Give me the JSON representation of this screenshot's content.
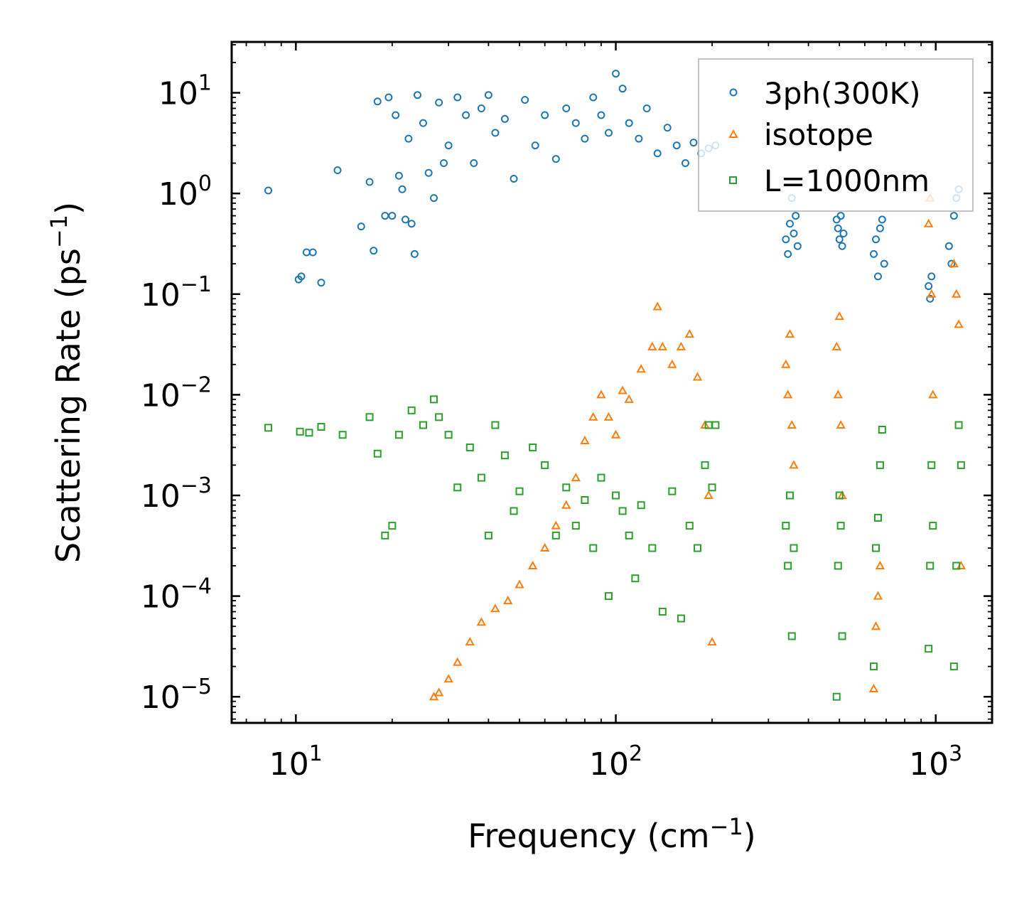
{
  "chart_data": {
    "type": "scatter",
    "title": "",
    "xlabel_main": "Frequency (cm",
    "xlabel_sup": "−1",
    "xlabel_close": ")",
    "ylabel_main": "Scattering Rate (ps",
    "ylabel_sup": "−1",
    "ylabel_close": ")",
    "xscale": "log",
    "yscale": "log",
    "xlim": [
      6.3,
      1500
    ],
    "ylim": [
      5.5e-06,
      32
    ],
    "x_ticks": [
      {
        "value": 10,
        "base": "10",
        "exp": "1"
      },
      {
        "value": 100,
        "base": "10",
        "exp": "2"
      },
      {
        "value": 1000,
        "base": "10",
        "exp": "3"
      }
    ],
    "y_ticks": [
      {
        "value": 10,
        "base": "10",
        "exp": "1"
      },
      {
        "value": 1,
        "base": "10",
        "exp": "0"
      },
      {
        "value": 0.1,
        "base": "10",
        "exp": "−1"
      },
      {
        "value": 0.01,
        "base": "10",
        "exp": "−2"
      },
      {
        "value": 0.001,
        "base": "10",
        "exp": "−3"
      },
      {
        "value": 0.0001,
        "base": "10",
        "exp": "−4"
      },
      {
        "value": 1e-05,
        "base": "10",
        "exp": "−5"
      }
    ],
    "legend_position": "top-right",
    "grid": false,
    "series": [
      {
        "name": "3ph(300K)",
        "marker": "circle",
        "color": "#1f77b4",
        "points": [
          [
            8.2,
            1.07
          ],
          [
            10.2,
            0.14
          ],
          [
            10.4,
            0.15
          ],
          [
            10.8,
            0.26
          ],
          [
            11.3,
            0.26
          ],
          [
            12,
            0.13
          ],
          [
            13.5,
            1.7
          ],
          [
            16,
            0.47
          ],
          [
            17,
            1.3
          ],
          [
            17.5,
            0.27
          ],
          [
            18,
            8.2
          ],
          [
            19,
            0.6
          ],
          [
            19.5,
            9
          ],
          [
            20,
            0.6
          ],
          [
            20.5,
            6
          ],
          [
            21,
            1.5
          ],
          [
            21.5,
            1.1
          ],
          [
            22,
            0.55
          ],
          [
            22.5,
            3.5
          ],
          [
            23,
            0.5
          ],
          [
            23.5,
            0.25
          ],
          [
            24,
            9.5
          ],
          [
            25,
            5
          ],
          [
            26,
            1.6
          ],
          [
            27,
            0.9
          ],
          [
            28,
            8
          ],
          [
            29,
            2
          ],
          [
            30,
            3
          ],
          [
            32,
            9
          ],
          [
            34,
            6
          ],
          [
            36,
            2
          ],
          [
            38,
            7
          ],
          [
            40,
            9.5
          ],
          [
            42,
            4
          ],
          [
            45,
            5.5
          ],
          [
            48,
            1.4
          ],
          [
            52,
            8.5
          ],
          [
            56,
            3
          ],
          [
            60,
            6
          ],
          [
            65,
            2.2
          ],
          [
            70,
            7
          ],
          [
            75,
            5
          ],
          [
            80,
            3.5
          ],
          [
            85,
            9
          ],
          [
            90,
            6
          ],
          [
            95,
            4
          ],
          [
            100,
            15.5
          ],
          [
            105,
            11
          ],
          [
            110,
            5
          ],
          [
            118,
            3.5
          ],
          [
            125,
            7
          ],
          [
            135,
            2.5
          ],
          [
            145,
            4.5
          ],
          [
            155,
            3
          ],
          [
            165,
            2
          ],
          [
            175,
            3.2
          ],
          [
            185,
            2.5
          ],
          [
            195,
            2.8
          ],
          [
            205,
            3
          ],
          [
            340,
            0.35
          ],
          [
            345,
            0.25
          ],
          [
            350,
            0.5
          ],
          [
            355,
            0.9
          ],
          [
            360,
            0.4
          ],
          [
            365,
            0.6
          ],
          [
            370,
            0.3
          ],
          [
            490,
            0.55
          ],
          [
            495,
            0.45
          ],
          [
            500,
            0.35
          ],
          [
            505,
            0.6
          ],
          [
            510,
            0.3
          ],
          [
            515,
            0.4
          ],
          [
            640,
            0.25
          ],
          [
            650,
            0.35
          ],
          [
            660,
            0.15
          ],
          [
            670,
            0.45
          ],
          [
            680,
            0.55
          ],
          [
            690,
            0.2
          ],
          [
            950,
            0.12
          ],
          [
            960,
            0.09
          ],
          [
            970,
            0.15
          ],
          [
            1100,
            0.3
          ],
          [
            1120,
            0.2
          ],
          [
            1140,
            0.6
          ],
          [
            1160,
            0.9
          ],
          [
            1180,
            1.1
          ]
        ]
      },
      {
        "name": "isotope",
        "marker": "triangle",
        "color": "#ff7f0e",
        "points": [
          [
            27,
            1e-05
          ],
          [
            28,
            1.1e-05
          ],
          [
            30,
            1.5e-05
          ],
          [
            32,
            2.2e-05
          ],
          [
            35,
            3.5e-05
          ],
          [
            38,
            5.5e-05
          ],
          [
            42,
            7.5e-05
          ],
          [
            46,
            9e-05
          ],
          [
            50,
            0.00013
          ],
          [
            55,
            0.0002
          ],
          [
            60,
            0.0003
          ],
          [
            65,
            0.0005
          ],
          [
            70,
            0.0008
          ],
          [
            75,
            0.0015
          ],
          [
            80,
            0.0035
          ],
          [
            85,
            0.006
          ],
          [
            90,
            0.01
          ],
          [
            95,
            0.006
          ],
          [
            100,
            0.004
          ],
          [
            105,
            0.011
          ],
          [
            110,
            0.009
          ],
          [
            120,
            0.018
          ],
          [
            130,
            0.03
          ],
          [
            135,
            0.075
          ],
          [
            140,
            0.03
          ],
          [
            150,
            0.02
          ],
          [
            160,
            0.03
          ],
          [
            170,
            0.04
          ],
          [
            180,
            0.015
          ],
          [
            190,
            0.005
          ],
          [
            195,
            0.001
          ],
          [
            200,
            3.5e-05
          ],
          [
            340,
            0.02
          ],
          [
            345,
            0.01
          ],
          [
            350,
            0.04
          ],
          [
            355,
            0.005
          ],
          [
            360,
            0.002
          ],
          [
            490,
            0.03
          ],
          [
            495,
            0.01
          ],
          [
            500,
            0.06
          ],
          [
            505,
            0.005
          ],
          [
            510,
            0.001
          ],
          [
            640,
            1.2e-05
          ],
          [
            650,
            5e-05
          ],
          [
            660,
            0.0001
          ],
          [
            670,
            0.0002
          ],
          [
            950,
            0.5
          ],
          [
            960,
            0.9
          ],
          [
            970,
            0.1
          ],
          [
            980,
            0.01
          ],
          [
            1140,
            0.2
          ],
          [
            1160,
            0.1
          ],
          [
            1180,
            0.05
          ],
          [
            1200,
            0.0002
          ]
        ]
      },
      {
        "name": "L=1000nm",
        "marker": "square",
        "color": "#2ca02c",
        "points": [
          [
            8.2,
            0.0047
          ],
          [
            10.3,
            0.0043
          ],
          [
            11,
            0.0042
          ],
          [
            12,
            0.0048
          ],
          [
            14,
            0.004
          ],
          [
            17,
            0.006
          ],
          [
            18,
            0.0026
          ],
          [
            19,
            0.0004
          ],
          [
            20,
            0.0005
          ],
          [
            21,
            0.004
          ],
          [
            23,
            0.007
          ],
          [
            25,
            0.005
          ],
          [
            27,
            0.009
          ],
          [
            28,
            0.006
          ],
          [
            30,
            0.004
          ],
          [
            32,
            0.0012
          ],
          [
            35,
            0.003
          ],
          [
            38,
            0.0015
          ],
          [
            40,
            0.0004
          ],
          [
            42,
            0.005
          ],
          [
            45,
            0.0025
          ],
          [
            48,
            0.0007
          ],
          [
            50,
            0.0011
          ],
          [
            55,
            0.003
          ],
          [
            60,
            0.002
          ],
          [
            65,
            0.0004
          ],
          [
            70,
            0.0012
          ],
          [
            75,
            0.0005
          ],
          [
            80,
            0.0009
          ],
          [
            85,
            0.0003
          ],
          [
            90,
            0.0015
          ],
          [
            95,
            0.0001
          ],
          [
            100,
            0.001
          ],
          [
            105,
            0.0007
          ],
          [
            110,
            0.0004
          ],
          [
            115,
            0.00015
          ],
          [
            120,
            0.0008
          ],
          [
            130,
            0.0003
          ],
          [
            140,
            7e-05
          ],
          [
            150,
            0.0011
          ],
          [
            160,
            6e-05
          ],
          [
            170,
            0.0005
          ],
          [
            180,
            0.0003
          ],
          [
            190,
            0.002
          ],
          [
            195,
            0.005
          ],
          [
            200,
            0.0012
          ],
          [
            205,
            0.005
          ],
          [
            340,
            0.0005
          ],
          [
            345,
            0.0002
          ],
          [
            350,
            0.001
          ],
          [
            355,
            4e-05
          ],
          [
            360,
            0.0003
          ],
          [
            490,
            1e-05
          ],
          [
            495,
            0.0002
          ],
          [
            500,
            0.001
          ],
          [
            505,
            0.0005
          ],
          [
            510,
            4e-05
          ],
          [
            640,
            2e-05
          ],
          [
            650,
            0.0003
          ],
          [
            660,
            0.0006
          ],
          [
            670,
            0.002
          ],
          [
            680,
            0.0045
          ],
          [
            950,
            3e-05
          ],
          [
            960,
            0.0002
          ],
          [
            970,
            0.002
          ],
          [
            980,
            0.0005
          ],
          [
            1140,
            2e-05
          ],
          [
            1160,
            0.0002
          ],
          [
            1180,
            0.005
          ],
          [
            1200,
            0.002
          ]
        ]
      }
    ]
  }
}
